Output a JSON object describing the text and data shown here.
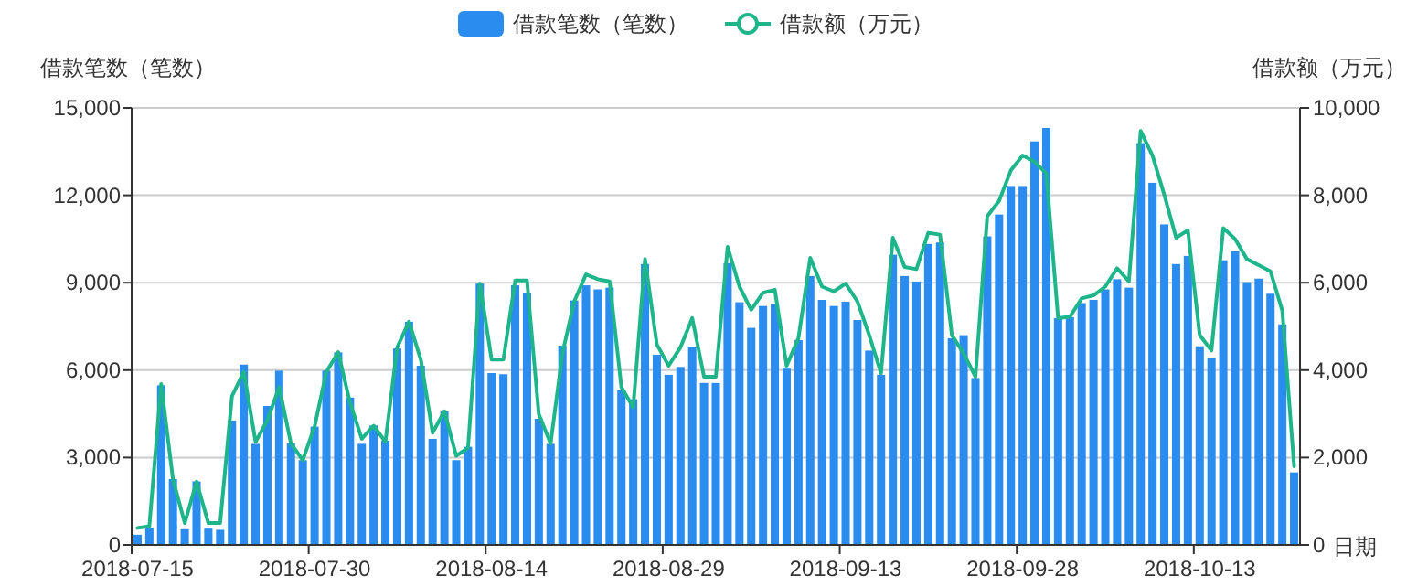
{
  "chart_data": {
    "type": "bar",
    "xlabel": "日期",
    "ylabel": "借款笔数（笔数）",
    "y2label": "借款额（万元）",
    "categories": [
      "2018-07-15",
      null,
      null,
      null,
      null,
      null,
      null,
      null,
      null,
      null,
      null,
      null,
      null,
      null,
      null,
      "2018-07-30",
      null,
      null,
      null,
      null,
      null,
      null,
      null,
      null,
      null,
      null,
      null,
      null,
      null,
      null,
      "2018-08-14",
      null,
      null,
      null,
      null,
      null,
      null,
      null,
      null,
      null,
      null,
      null,
      null,
      null,
      null,
      "2018-08-29",
      null,
      null,
      null,
      null,
      null,
      null,
      null,
      null,
      null,
      null,
      null,
      null,
      null,
      null,
      "2018-09-13",
      null,
      null,
      null,
      null,
      null,
      null,
      null,
      null,
      null,
      null,
      null,
      null,
      null,
      null,
      "2018-09-28",
      null,
      null,
      null,
      null,
      null,
      null,
      null,
      null,
      null,
      null,
      null,
      null,
      null,
      null,
      "2018-10-13",
      null,
      null,
      null,
      null,
      null,
      null,
      null,
      null
    ],
    "series": [
      {
        "name": "借款笔数（笔数）",
        "color": "#2b8cf0",
        "values": [
          350,
          600,
          5480,
          2260,
          540,
          2180,
          560,
          520,
          4270,
          6190,
          3470,
          4770,
          5980,
          3490,
          2910,
          4060,
          5980,
          6610,
          5060,
          3470,
          4100,
          3580,
          6740,
          7660,
          6150,
          3640,
          4580,
          2910,
          3370,
          8970,
          5900,
          5860,
          8910,
          8660,
          4330,
          3470,
          6840,
          8390,
          8910,
          8770,
          8830,
          5310,
          5000,
          9640,
          6530,
          5840,
          6110,
          6780,
          5560,
          5560,
          9670,
          8330,
          7450,
          8200,
          8280,
          6050,
          7030,
          9230,
          8410,
          8200,
          8350,
          7720,
          6670,
          5840,
          9960,
          9230,
          9040,
          10330,
          10380,
          7090,
          7200,
          5730,
          10590,
          11340,
          12320,
          12320,
          13850,
          14310,
          7780,
          7820,
          8300,
          8410,
          8770,
          9120,
          8830,
          13790,
          12430,
          11000,
          9640,
          9920,
          6820,
          6420,
          9770,
          10080,
          9020,
          9140,
          8620,
          7570,
          2490
        ]
      },
      {
        "name": "借款额（万元）",
        "type": "line",
        "axis": "y2",
        "color": "#1fb58a",
        "values": [
          390,
          430,
          3680,
          1500,
          500,
          1450,
          500,
          500,
          3400,
          3960,
          2360,
          2850,
          3610,
          2320,
          1940,
          2710,
          3960,
          4410,
          3260,
          2430,
          2730,
          2360,
          4520,
          5110,
          4240,
          2570,
          3060,
          2040,
          2220,
          5980,
          4240,
          4240,
          6050,
          6050,
          2990,
          2320,
          4380,
          5570,
          6190,
          6080,
          6030,
          3610,
          3150,
          6540,
          4590,
          4100,
          4520,
          5190,
          3850,
          3850,
          6820,
          5910,
          5380,
          5770,
          5840,
          4100,
          4730,
          6570,
          5910,
          5800,
          5980,
          5570,
          4800,
          3930,
          7030,
          6360,
          6310,
          7140,
          7100,
          4800,
          4380,
          3850,
          7520,
          7870,
          8570,
          8910,
          8770,
          8500,
          5190,
          5220,
          5640,
          5710,
          5910,
          6330,
          6030,
          9470,
          8910,
          8010,
          7030,
          7200,
          4800,
          4450,
          7250,
          7000,
          6540,
          6400,
          6260,
          5360,
          1800
        ]
      }
    ],
    "ylim": [
      0,
      15000
    ],
    "yticks": [
      {
        "value": 0,
        "label": "0"
      },
      {
        "value": 3000,
        "label": "3,000"
      },
      {
        "value": 6000,
        "label": "6,000"
      },
      {
        "value": 9000,
        "label": "9,000"
      },
      {
        "value": 12000,
        "label": "12,000"
      },
      {
        "value": 15000,
        "label": "15,000"
      }
    ],
    "y2lim": [
      0,
      10000
    ],
    "y2ticks": [
      {
        "value": 0,
        "label": "0"
      },
      {
        "value": 2000,
        "label": "2,000"
      },
      {
        "value": 4000,
        "label": "4,000"
      },
      {
        "value": 6000,
        "label": "6,000"
      },
      {
        "value": 8000,
        "label": "8,000"
      },
      {
        "value": 10000,
        "label": "10,000"
      }
    ],
    "grid": "y",
    "legend": "top"
  }
}
